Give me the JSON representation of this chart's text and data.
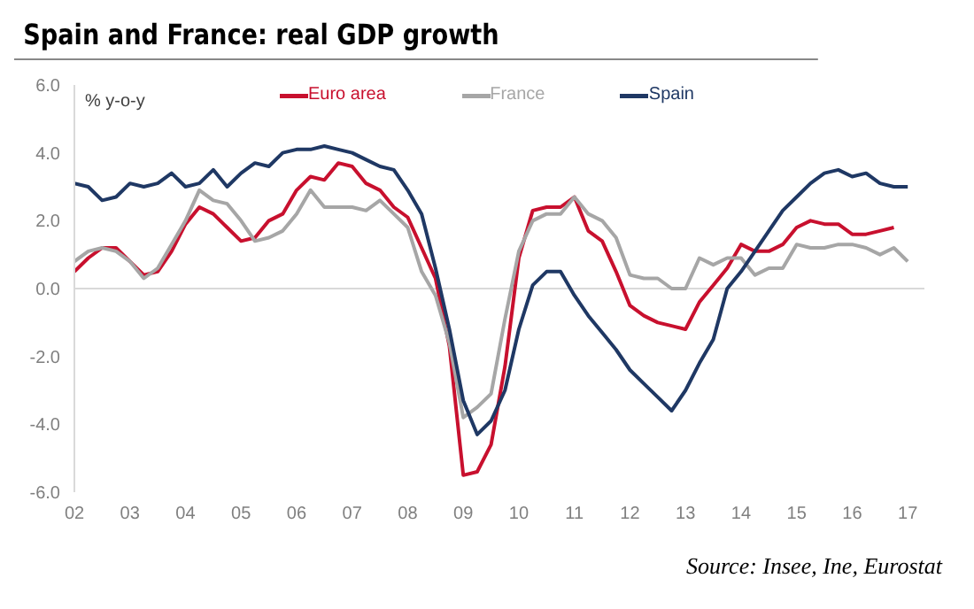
{
  "chart_data": {
    "type": "line",
    "title": "Spain and France: real GDP growth",
    "ylabel": "% y-o-y",
    "x": [
      2002,
      2002.25,
      2002.5,
      2002.75,
      2003,
      2003.25,
      2003.5,
      2003.75,
      2004,
      2004.25,
      2004.5,
      2004.75,
      2005,
      2005.25,
      2005.5,
      2005.75,
      2006,
      2006.25,
      2006.5,
      2006.75,
      2007,
      2007.25,
      2007.5,
      2007.75,
      2008,
      2008.25,
      2008.5,
      2008.75,
      2009,
      2009.25,
      2009.5,
      2009.75,
      2010,
      2010.25,
      2010.5,
      2010.75,
      2011,
      2011.25,
      2011.5,
      2011.75,
      2012,
      2012.25,
      2012.5,
      2012.75,
      2013,
      2013.25,
      2013.5,
      2013.75,
      2014,
      2014.25,
      2014.5,
      2014.75,
      2015,
      2015.25,
      2015.5,
      2015.75,
      2016,
      2016.25,
      2016.5,
      2016.75
    ],
    "series": [
      {
        "name": "Euro area",
        "color": "#c8102e",
        "values": [
          0.5,
          0.9,
          1.2,
          1.2,
          0.8,
          0.4,
          0.5,
          1.1,
          1.9,
          2.4,
          2.2,
          1.8,
          1.4,
          1.5,
          2.0,
          2.2,
          2.9,
          3.3,
          3.2,
          3.7,
          3.6,
          3.1,
          2.9,
          2.4,
          2.1,
          1.2,
          0.3,
          -1.7,
          -5.5,
          -5.4,
          -4.6,
          -2.3,
          0.9,
          2.3,
          2.4,
          2.4,
          2.7,
          1.7,
          1.4,
          0.5,
          -0.5,
          -0.8,
          -1.0,
          -1.1,
          -1.2,
          -0.4,
          0.1,
          0.6,
          1.3,
          1.1,
          1.1,
          1.3,
          1.8,
          2.0,
          1.9,
          1.9,
          1.6,
          1.6,
          1.7,
          1.8
        ]
      },
      {
        "name": "France",
        "color": "#a6a6a6",
        "x": [
          2002,
          2002.25,
          2002.5,
          2002.75,
          2003,
          2003.25,
          2003.5,
          2003.75,
          2004,
          2004.25,
          2004.5,
          2004.75,
          2005,
          2005.25,
          2005.5,
          2005.75,
          2006,
          2006.25,
          2006.5,
          2006.75,
          2007,
          2007.25,
          2007.5,
          2007.75,
          2008,
          2008.25,
          2008.5,
          2008.75,
          2009,
          2009.25,
          2009.5,
          2009.75,
          2010,
          2010.25,
          2010.5,
          2010.75,
          2011,
          2011.25,
          2011.5,
          2011.75,
          2012,
          2012.25,
          2012.5,
          2012.75,
          2013,
          2013.25,
          2013.5,
          2013.75,
          2014,
          2014.25,
          2014.5,
          2014.75,
          2015,
          2015.25,
          2015.5,
          2015.75,
          2016,
          2016.25,
          2016.5,
          2016.75,
          2017
        ],
        "values": [
          0.8,
          1.1,
          1.2,
          1.1,
          0.8,
          0.3,
          0.6,
          1.3,
          2.0,
          2.9,
          2.6,
          2.5,
          2.0,
          1.4,
          1.5,
          1.7,
          2.2,
          2.9,
          2.4,
          2.4,
          2.4,
          2.3,
          2.6,
          2.2,
          1.8,
          0.5,
          -0.2,
          -1.6,
          -3.8,
          -3.5,
          -3.1,
          -0.9,
          1.1,
          2.0,
          2.2,
          2.2,
          2.7,
          2.2,
          2.0,
          1.5,
          0.4,
          0.3,
          0.3,
          0.0,
          0.0,
          0.9,
          0.7,
          0.9,
          0.9,
          0.4,
          0.6,
          0.6,
          1.3,
          1.2,
          1.2,
          1.3,
          1.3,
          1.2,
          1.0,
          1.2,
          0.8
        ]
      },
      {
        "name": "Spain",
        "color": "#1f3864",
        "x": [
          2002,
          2002.25,
          2002.5,
          2002.75,
          2003,
          2003.25,
          2003.5,
          2003.75,
          2004,
          2004.25,
          2004.5,
          2004.75,
          2005,
          2005.25,
          2005.5,
          2005.75,
          2006,
          2006.25,
          2006.5,
          2006.75,
          2007,
          2007.25,
          2007.5,
          2007.75,
          2008,
          2008.25,
          2008.5,
          2008.75,
          2009,
          2009.25,
          2009.5,
          2009.75,
          2010,
          2010.25,
          2010.5,
          2010.75,
          2011,
          2011.25,
          2011.5,
          2011.75,
          2012,
          2012.25,
          2012.5,
          2012.75,
          2013,
          2013.25,
          2013.5,
          2013.75,
          2014,
          2014.25,
          2014.5,
          2014.75,
          2015,
          2015.25,
          2015.5,
          2015.75,
          2016,
          2016.25,
          2016.5,
          2016.75,
          2017
        ],
        "values": [
          3.1,
          3.0,
          2.6,
          2.7,
          3.1,
          3.0,
          3.1,
          3.4,
          3.0,
          3.1,
          3.5,
          3.0,
          3.4,
          3.7,
          3.6,
          4.0,
          4.1,
          4.1,
          4.2,
          4.1,
          4.0,
          3.8,
          3.6,
          3.5,
          2.9,
          2.2,
          0.6,
          -1.2,
          -3.3,
          -4.3,
          -3.9,
          -3.0,
          -1.2,
          0.1,
          0.5,
          0.5,
          -0.2,
          -0.8,
          -1.3,
          -1.8,
          -2.4,
          -2.8,
          -3.2,
          -3.6,
          -3.0,
          -2.2,
          -1.5,
          0.0,
          0.5,
          1.1,
          1.7,
          2.3,
          2.7,
          3.1,
          3.4,
          3.5,
          3.3,
          3.4,
          3.1,
          3.0,
          3.0
        ]
      }
    ],
    "xlim": [
      2002,
      2017.3
    ],
    "xticks": [
      {
        "value": 2002,
        "label": "02"
      },
      {
        "value": 2003,
        "label": "03"
      },
      {
        "value": 2004,
        "label": "04"
      },
      {
        "value": 2005,
        "label": "05"
      },
      {
        "value": 2006,
        "label": "06"
      },
      {
        "value": 2007,
        "label": "07"
      },
      {
        "value": 2008,
        "label": "08"
      },
      {
        "value": 2009,
        "label": "09"
      },
      {
        "value": 2010,
        "label": "10"
      },
      {
        "value": 2011,
        "label": "11"
      },
      {
        "value": 2012,
        "label": "12"
      },
      {
        "value": 2013,
        "label": "13"
      },
      {
        "value": 2014,
        "label": "14"
      },
      {
        "value": 2015,
        "label": "15"
      },
      {
        "value": 2016,
        "label": "16"
      },
      {
        "value": 2017,
        "label": "17"
      }
    ],
    "ylim": [
      -6,
      6
    ],
    "yticks": [
      {
        "value": -6,
        "label": "-6.0"
      },
      {
        "value": -4,
        "label": "-4.0"
      },
      {
        "value": -2,
        "label": "-2.0"
      },
      {
        "value": 0,
        "label": "0.0"
      },
      {
        "value": 2,
        "label": "2.0"
      },
      {
        "value": 4,
        "label": "4.0"
      },
      {
        "value": 6,
        "label": "6.0"
      }
    ],
    "ref_lines": [
      {
        "axis": "y",
        "value": 0,
        "color": "#d9d9d9"
      }
    ],
    "legend": "top",
    "marker": "none",
    "line_style": "solid",
    "annotations": [
      "Source: Insee, Ine, Eurostat"
    ]
  }
}
